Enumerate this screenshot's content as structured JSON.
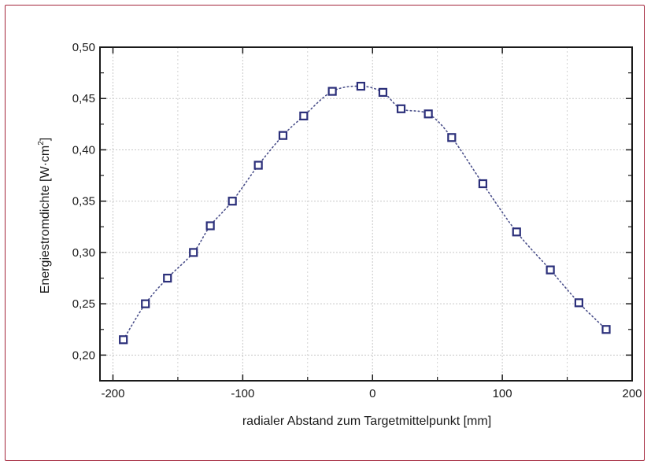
{
  "chart_data": {
    "type": "scatter",
    "xlabel": "radialer Abstand zum Targetmittelpunkt [mm]",
    "ylabel_main": "Energiestromdichte [W·cm",
    "ylabel_sup": "2",
    "ylabel_end": "]",
    "xlim": [
      -210,
      200
    ],
    "ylim": [
      0.175,
      0.5
    ],
    "x_ticks": [
      -200,
      -100,
      0,
      100,
      200
    ],
    "x_tick_labels": [
      "-200",
      "-100",
      "0",
      "100",
      "200"
    ],
    "y_ticks": [
      0.2,
      0.25,
      0.3,
      0.35,
      0.4,
      0.45,
      0.5
    ],
    "y_tick_labels": [
      "0,20",
      "0,25",
      "0,30",
      "0,35",
      "0,40",
      "0,45",
      "0,50"
    ],
    "grid": true,
    "marker": "open-square",
    "line_style": "dotted",
    "colors": {
      "marker": "#2b2f7a",
      "line": "#4a4f8a",
      "grid": "#c8c8c8",
      "frame": "#a3243a"
    },
    "series": [
      {
        "x": [
          -192,
          -175,
          -158,
          -138,
          -125,
          -108,
          -88,
          -69,
          -53,
          -31,
          -9,
          8,
          22,
          43,
          61,
          85,
          111,
          137,
          159,
          180
        ],
        "y": [
          0.215,
          0.25,
          0.275,
          0.3,
          0.326,
          0.35,
          0.385,
          0.414,
          0.433,
          0.457,
          0.462,
          0.456,
          0.44,
          0.435,
          0.412,
          0.367,
          0.32,
          0.283,
          0.251,
          0.225
        ]
      }
    ]
  }
}
